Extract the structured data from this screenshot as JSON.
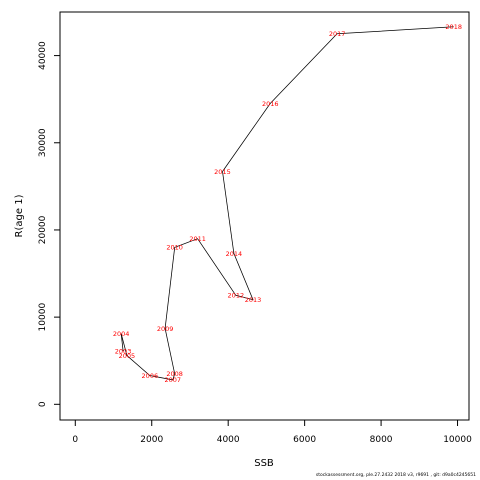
{
  "chart_data": {
    "type": "line",
    "xlabel": "SSB",
    "ylabel": "R(age 1)",
    "xlim": [
      -400,
      10300
    ],
    "ylim": [
      -1800,
      45000
    ],
    "x_ticks": [
      0,
      2000,
      4000,
      6000,
      8000,
      10000
    ],
    "y_ticks": [
      0,
      10000,
      20000,
      30000,
      40000
    ],
    "line_color": "#000000",
    "label_color": "#ff0000",
    "points": [
      {
        "label": "2003",
        "x": 1250,
        "y": 6100
      },
      {
        "label": "2004",
        "x": 1200,
        "y": 8100
      },
      {
        "label": "2005",
        "x": 1350,
        "y": 5600
      },
      {
        "label": "2006",
        "x": 1950,
        "y": 3300
      },
      {
        "label": "2007",
        "x": 2550,
        "y": 2800
      },
      {
        "label": "2008",
        "x": 2600,
        "y": 3500
      },
      {
        "label": "2009",
        "x": 2350,
        "y": 8700
      },
      {
        "label": "2010",
        "x": 2600,
        "y": 18000
      },
      {
        "label": "2011",
        "x": 3200,
        "y": 19000
      },
      {
        "label": "2012",
        "x": 4200,
        "y": 12500
      },
      {
        "label": "2013",
        "x": 4650,
        "y": 12000
      },
      {
        "label": "2014",
        "x": 4150,
        "y": 17300
      },
      {
        "label": "2015",
        "x": 3850,
        "y": 26700
      },
      {
        "label": "2016",
        "x": 5100,
        "y": 34500
      },
      {
        "label": "2017",
        "x": 6850,
        "y": 42500
      },
      {
        "label": "2018",
        "x": 9900,
        "y": 43300
      }
    ]
  },
  "footer": "stockassessment.org,  ple.27.2432  2018  v3,  r9691  , git:  d9a0c4245651"
}
